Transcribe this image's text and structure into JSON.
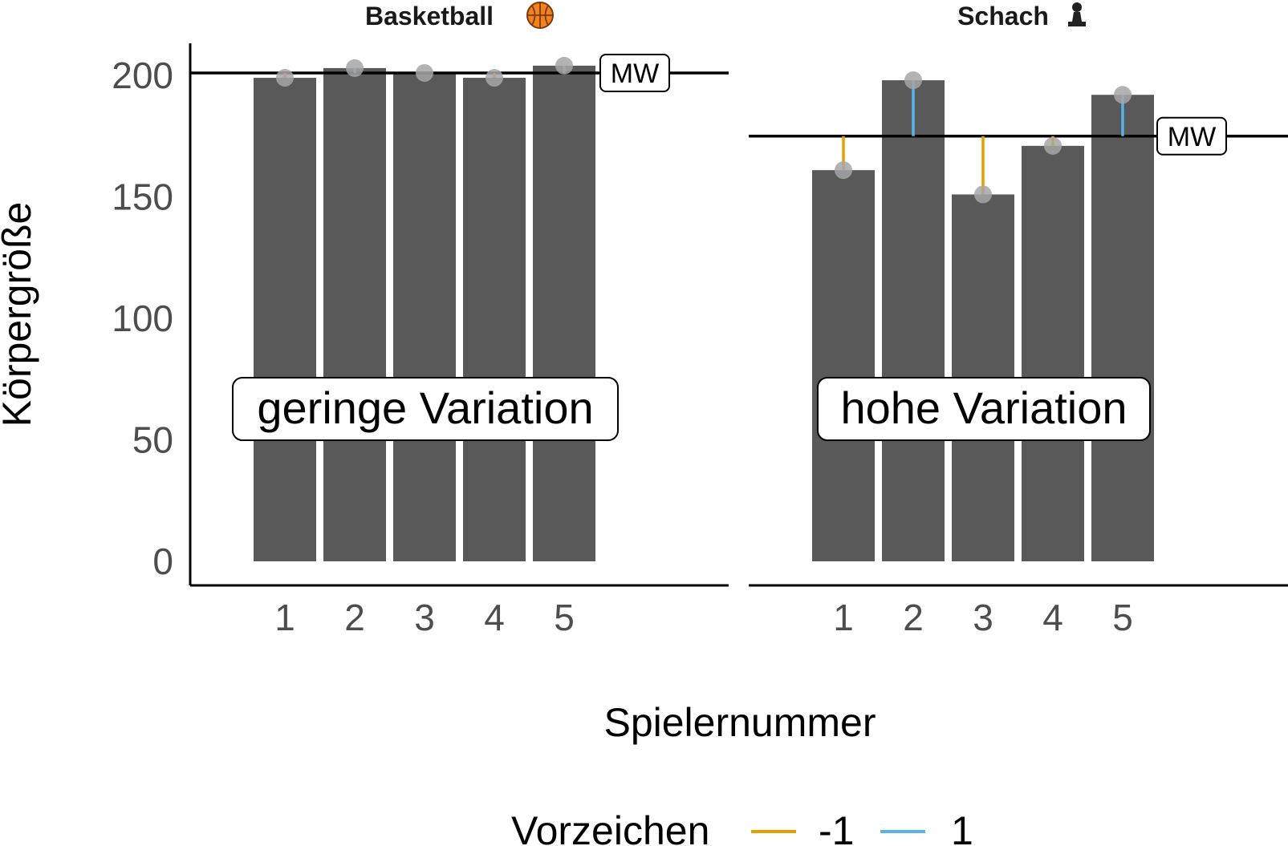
{
  "chart_data": {
    "type": "bar",
    "xlabel": "Spielernummer",
    "ylabel": "Körpergröße",
    "ylim": [
      0,
      200
    ],
    "yticks": [
      0,
      50,
      100,
      150,
      200
    ],
    "categories": [
      "1",
      "2",
      "3",
      "4",
      "5"
    ],
    "facets": [
      {
        "title": "Basketball",
        "title_icon": "basketball-icon",
        "values": [
          199,
          203,
          201,
          199,
          204
        ],
        "mean": 201,
        "mean_label": "MW",
        "annotation": "geringe Variation"
      },
      {
        "title": "Schach",
        "title_icon": "chess-pawn-icon",
        "values": [
          161,
          198,
          151,
          171,
          192
        ],
        "mean": 175,
        "mean_label": "MW",
        "annotation": "hohe Variation"
      }
    ],
    "legend": {
      "title": "Vorzeichen",
      "position": "bottom",
      "entries": [
        {
          "label": "-1",
          "color": "#E69F00"
        },
        {
          "label": "1",
          "color": "#56B4E9"
        }
      ]
    },
    "colors": {
      "bar": "#595959",
      "point": "#a6a6a6",
      "mean_line": "#000000"
    }
  }
}
